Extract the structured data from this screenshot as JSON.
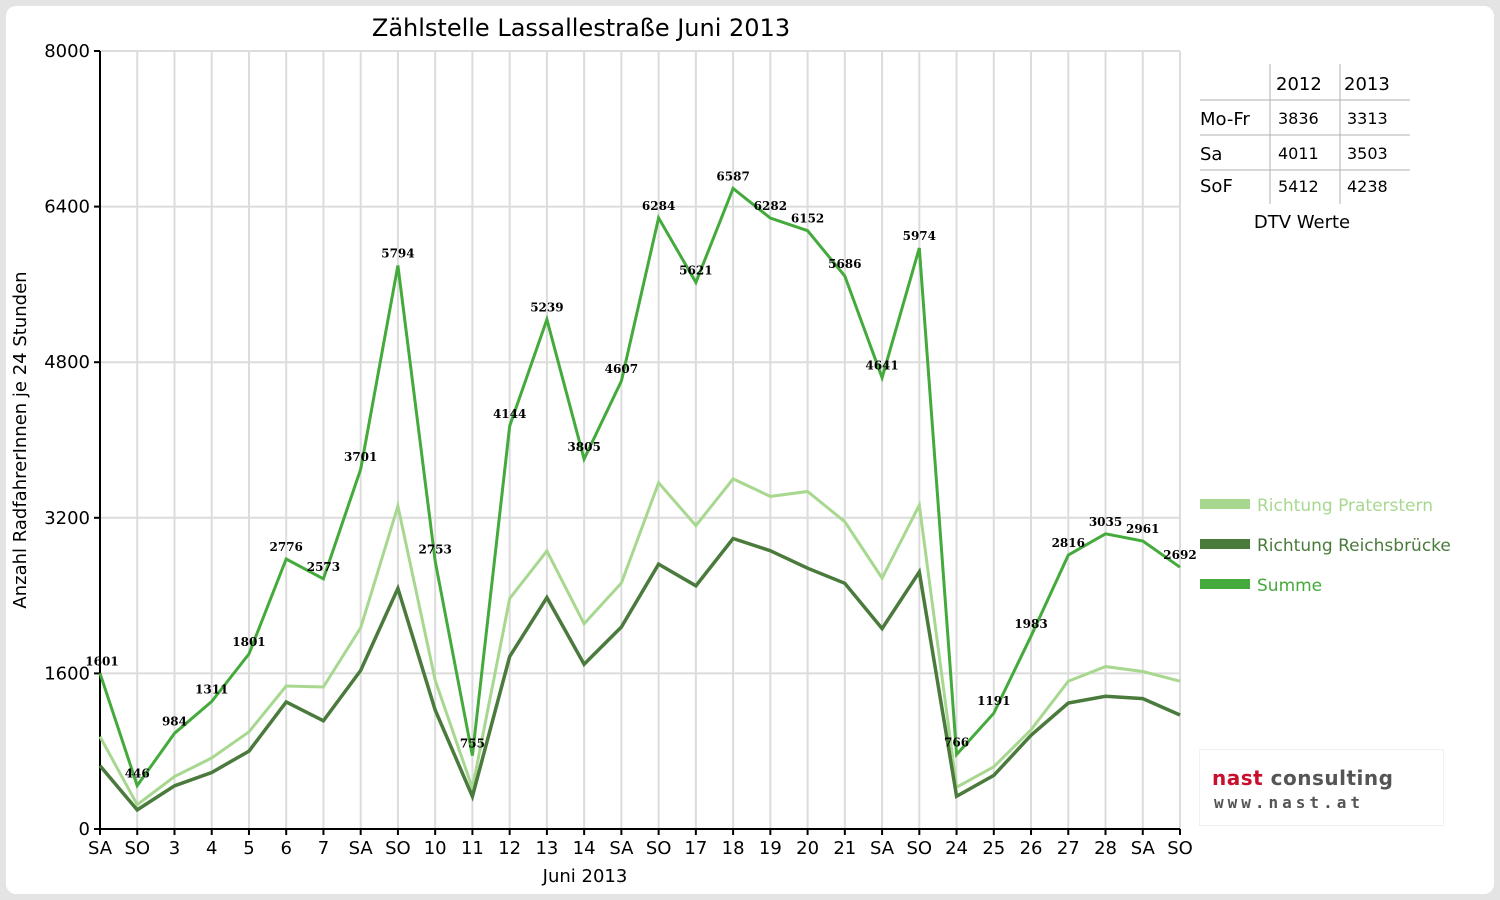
{
  "chart_data": {
    "type": "line",
    "title": "Zählstelle Lassallestraße Juni 2013",
    "xlabel": "Juni 2013",
    "ylabel": "Anzahl RadfahrerInnen je 24 Stunden",
    "ylim": [
      0,
      8000
    ],
    "yticks": [
      "0",
      "1600",
      "3200",
      "4800",
      "6400",
      "8000"
    ],
    "grid": true,
    "legend_position": "right",
    "categories": [
      "SA",
      "SO",
      "3",
      "4",
      "5",
      "6",
      "7",
      "SA",
      "SO",
      "10",
      "11",
      "12",
      "13",
      "14",
      "SA",
      "SO",
      "17",
      "18",
      "19",
      "20",
      "21",
      "SA",
      "SO",
      "24",
      "25",
      "26",
      "27",
      "28",
      "SA",
      "SO"
    ],
    "weekend_color": "#ee0000",
    "category_color": "#000000",
    "series": [
      {
        "name": "Richtung Praterstern",
        "color": "#a8d890",
        "values": [
          950,
          250,
          540,
          730,
          1000,
          1470,
          1460,
          2070,
          3320,
          1530,
          420,
          2370,
          2860,
          2110,
          2530,
          3560,
          3120,
          3600,
          3420,
          3470,
          3160,
          2580,
          3330,
          430,
          640,
          1020,
          1520,
          1670,
          1620,
          1520
        ]
      },
      {
        "name": "Richtung Reichsbrücke",
        "color": "#4a7a3c",
        "values": [
          650,
          196,
          444,
          581,
          801,
          1306,
          1113,
          1631,
          2474,
          1223,
          335,
          1774,
          2379,
          1695,
          2077,
          2724,
          2501,
          2987,
          2862,
          2682,
          2526,
          2061,
          2644,
          336,
          551,
          963,
          1296,
          1365,
          1341,
          1172
        ]
      },
      {
        "name": "Summe",
        "color": "#44aa3c",
        "values": [
          1601,
          446,
          984,
          1311,
          1801,
          2776,
          2573,
          3701,
          5794,
          2753,
          755,
          4144,
          5239,
          3805,
          4607,
          6284,
          5621,
          6587,
          6282,
          6152,
          5686,
          4641,
          5974,
          766,
          1191,
          1983,
          2816,
          3035,
          2961,
          2692
        ]
      }
    ],
    "data_labels": [
      "1601",
      "446",
      "984",
      "1311",
      "1801",
      "2776",
      "2573",
      "3701",
      "5794",
      "2753",
      "755",
      "4144",
      "5239",
      "3805",
      "4607",
      "6284",
      "5621",
      "6587",
      "6282",
      "6152",
      "5686",
      "4641",
      "5974",
      "766",
      "1191",
      "1983",
      "2816",
      "3035",
      "2961",
      "2692"
    ]
  },
  "dtv_table": {
    "columns": [
      "",
      "2012",
      "2013"
    ],
    "rows": [
      {
        "label": "Mo-Fr",
        "v2012": "3836",
        "v2013": "3313"
      },
      {
        "label": "Sa",
        "v2012": "4011",
        "v2013": "3503"
      },
      {
        "label": "SoF",
        "v2012": "5412",
        "v2013": "4238"
      }
    ],
    "caption": "DTV Werte"
  },
  "logo": {
    "brand_nast": "nast",
    "brand_consulting": " consulting",
    "url": "www.nast.at",
    "brand_color": "#c8102e"
  }
}
